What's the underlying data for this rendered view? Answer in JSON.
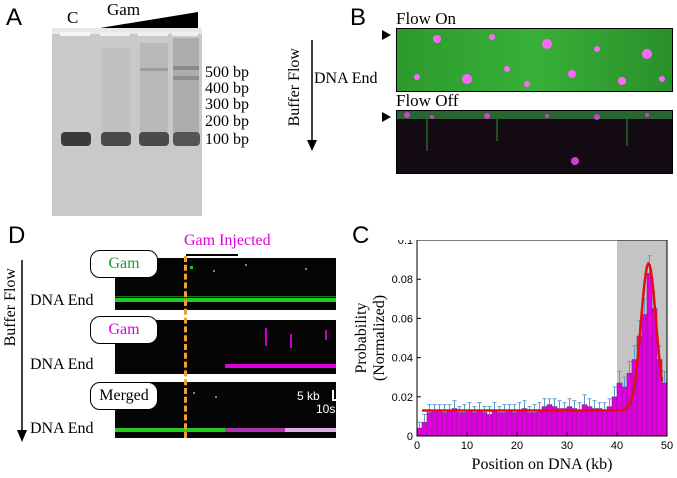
{
  "panelA": {
    "letter": "A",
    "lane_control": "C",
    "gam_label": "Gam",
    "ladder": [
      "500 bp",
      "400 bp",
      "300 bp",
      "200 bp",
      "100 bp"
    ]
  },
  "panelB": {
    "letter": "B",
    "flow_on": "Flow On",
    "flow_off": "Flow Off",
    "buffer_flow": "Buffer Flow",
    "dna_end": "DNA End"
  },
  "panelD": {
    "letter": "D",
    "gam_injected": "Gam Injected",
    "buffer_flow": "Buffer Flow",
    "rows": [
      {
        "tag": "Gam",
        "tag_color": "#1a9a3a",
        "label": "DNA End"
      },
      {
        "tag": "Gam",
        "tag_color": "#e000e0",
        "label": "DNA End"
      },
      {
        "tag": "Merged",
        "tag_color": "#000000",
        "label": "DNA End"
      }
    ],
    "scale_x": "5 kb",
    "scale_t": "10s"
  },
  "panelC": {
    "letter": "C",
    "chart_data": {
      "type": "bar",
      "xlabel": "Position on DNA (kb)",
      "ylabel_line1": "Probability",
      "ylabel_line2": "(Normalized)",
      "xlim": [
        0,
        50
      ],
      "ylim": [
        0,
        0.1
      ],
      "xticks": [
        0,
        10,
        20,
        30,
        40,
        50
      ],
      "yticks": [
        0,
        0.02,
        0.04,
        0.06,
        0.08,
        0.1
      ],
      "shaded_region": [
        40,
        50
      ],
      "bar_color": "#e000e0",
      "fit_color": "#e01010",
      "errbar_color": "#5a9bd5",
      "bin_width": 1,
      "x": [
        0.5,
        1.5,
        2.5,
        3.5,
        4.5,
        5.5,
        6.5,
        7.5,
        8.5,
        9.5,
        10.5,
        11.5,
        12.5,
        13.5,
        14.5,
        15.5,
        16.5,
        17.5,
        18.5,
        19.5,
        20.5,
        21.5,
        22.5,
        23.5,
        24.5,
        25.5,
        26.5,
        27.5,
        28.5,
        29.5,
        30.5,
        31.5,
        32.5,
        33.5,
        34.5,
        35.5,
        36.5,
        37.5,
        38.5,
        39.5,
        40.5,
        41.5,
        42.5,
        43.5,
        44.5,
        45.5,
        46.5,
        47.5,
        48.5,
        49.5
      ],
      "values": [
        0.004,
        0.007,
        0.012,
        0.013,
        0.013,
        0.012,
        0.013,
        0.014,
        0.012,
        0.012,
        0.013,
        0.012,
        0.013,
        0.012,
        0.011,
        0.013,
        0.012,
        0.012,
        0.013,
        0.012,
        0.013,
        0.014,
        0.012,
        0.012,
        0.013,
        0.015,
        0.016,
        0.015,
        0.014,
        0.014,
        0.015,
        0.014,
        0.013,
        0.016,
        0.015,
        0.014,
        0.014,
        0.013,
        0.015,
        0.02,
        0.027,
        0.025,
        0.032,
        0.039,
        0.051,
        0.062,
        0.083,
        0.065,
        0.039,
        0.027
      ],
      "errors": [
        0.003,
        0.004,
        0.004,
        0.003,
        0.003,
        0.004,
        0.003,
        0.004,
        0.003,
        0.004,
        0.004,
        0.003,
        0.004,
        0.003,
        0.004,
        0.004,
        0.003,
        0.004,
        0.003,
        0.004,
        0.004,
        0.004,
        0.003,
        0.004,
        0.004,
        0.004,
        0.003,
        0.004,
        0.004,
        0.003,
        0.004,
        0.004,
        0.004,
        0.005,
        0.004,
        0.004,
        0.003,
        0.004,
        0.004,
        0.005,
        0.006,
        0.005,
        0.006,
        0.007,
        0.008,
        0.008,
        0.009,
        0.008,
        0.007,
        0.006
      ],
      "fit": {
        "baseline": 0.013,
        "amplitude": 0.075,
        "center": 46.3,
        "sigma": 1.5
      }
    }
  }
}
